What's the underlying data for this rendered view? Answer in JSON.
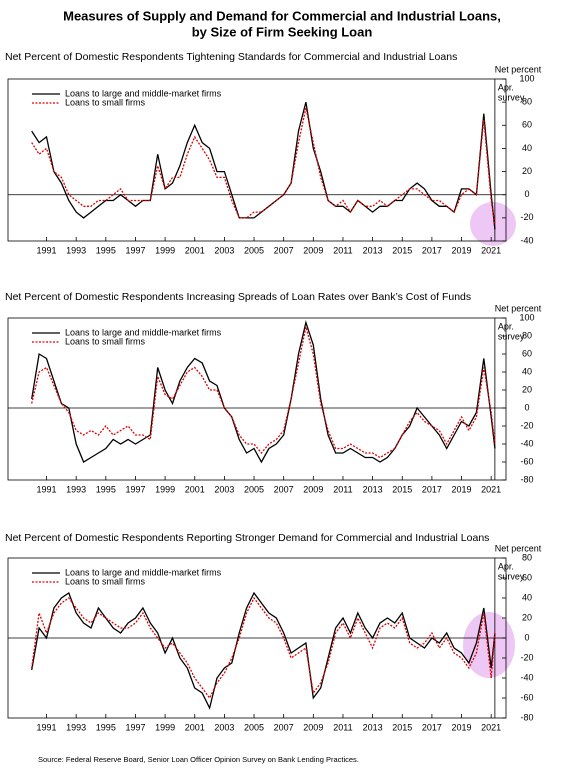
{
  "title": [
    "Measures of Supply and Demand for Commercial and Industrial Loans,",
    "by Size of Firm Seeking Loan"
  ],
  "source": "Source:  Federal Reserve Board, Senior Loan Officer Opinion Survey on Bank Lending Practices.",
  "chart_data": [
    {
      "type": "line",
      "title": "Net Percent of Domestic Respondents Tightening Standards for Commercial and Industrial Loans",
      "y_label": "Net percent",
      "annotation": {
        "x": 2021.25,
        "lines": [
          "Apr.",
          "survey"
        ]
      },
      "zero_line": true,
      "xlim": [
        1988.4,
        2022
      ],
      "xticks": [
        1991,
        1993,
        1995,
        1997,
        1999,
        2001,
        2003,
        2005,
        2007,
        2009,
        2011,
        2013,
        2015,
        2017,
        2019,
        2021
      ],
      "ylim": [
        -40,
        100
      ],
      "yticks": [
        -40,
        -20,
        0,
        20,
        40,
        60,
        80,
        100
      ],
      "x": [
        1990,
        1990.5,
        1991,
        1991.5,
        1992,
        1992.5,
        1993,
        1993.5,
        1994,
        1994.5,
        1995,
        1995.5,
        1996,
        1996.5,
        1997,
        1997.5,
        1998,
        1998.5,
        1999,
        1999.5,
        2000,
        2000.5,
        2001,
        2001.5,
        2002,
        2002.5,
        2003,
        2003.5,
        2004,
        2004.5,
        2005,
        2005.5,
        2006,
        2006.5,
        2007,
        2007.5,
        2008,
        2008.5,
        2009,
        2009.5,
        2010,
        2010.5,
        2011,
        2011.5,
        2012,
        2012.5,
        2013,
        2013.5,
        2014,
        2014.5,
        2015,
        2015.5,
        2016,
        2016.5,
        2017,
        2017.5,
        2018,
        2018.5,
        2019,
        2019.5,
        2020,
        2020.5,
        2021,
        2021.25
      ],
      "series": [
        {
          "name": "Loans to large and middle-market firms",
          "color": "#000000",
          "line_style": "solid",
          "values": [
            55,
            45,
            50,
            20,
            10,
            -5,
            -15,
            -20,
            -15,
            -10,
            -5,
            -5,
            0,
            -5,
            -10,
            -5,
            -5,
            35,
            5,
            10,
            25,
            45,
            60,
            45,
            40,
            20,
            20,
            0,
            -20,
            -20,
            -20,
            -15,
            -10,
            -5,
            0,
            10,
            55,
            80,
            40,
            20,
            -5,
            -10,
            -10,
            -15,
            -5,
            -10,
            -15,
            -10,
            -10,
            -5,
            -5,
            5,
            10,
            5,
            -5,
            -10,
            -10,
            -15,
            5,
            5,
            0,
            70,
            0,
            -30
          ]
        },
        {
          "name": "Loans to small firms",
          "color": "#e00000",
          "line_style": "dotted",
          "values": [
            45,
            35,
            40,
            20,
            15,
            0,
            -5,
            -10,
            -10,
            -5,
            -5,
            0,
            5,
            -5,
            -5,
            -5,
            -5,
            25,
            5,
            15,
            15,
            35,
            50,
            40,
            30,
            15,
            15,
            -5,
            -20,
            -20,
            -15,
            -15,
            -10,
            -5,
            0,
            10,
            45,
            75,
            45,
            15,
            -5,
            -10,
            -5,
            -15,
            -5,
            -10,
            -10,
            -5,
            -10,
            -5,
            0,
            5,
            5,
            0,
            -5,
            -5,
            -10,
            -15,
            0,
            5,
            0,
            65,
            -5,
            -25
          ]
        }
      ]
    },
    {
      "type": "line",
      "title": "Net Percent of Domestic Respondents Increasing Spreads of Loan Rates over Bank’s Cost of Funds",
      "y_label": "Net percent",
      "annotation": {
        "x": 2021.25,
        "lines": [
          "Apr.",
          "survey"
        ]
      },
      "zero_line": true,
      "xlim": [
        1988.4,
        2022
      ],
      "xticks": [
        1991,
        1993,
        1995,
        1997,
        1999,
        2001,
        2003,
        2005,
        2007,
        2009,
        2011,
        2013,
        2015,
        2017,
        2019,
        2021
      ],
      "ylim": [
        -80,
        100
      ],
      "yticks": [
        -80,
        -60,
        -40,
        -20,
        0,
        20,
        40,
        60,
        80,
        100
      ],
      "x": [
        1990,
        1990.5,
        1991,
        1991.5,
        1992,
        1992.5,
        1993,
        1993.5,
        1994,
        1994.5,
        1995,
        1995.5,
        1996,
        1996.5,
        1997,
        1997.5,
        1998,
        1998.5,
        1999,
        1999.5,
        2000,
        2000.5,
        2001,
        2001.5,
        2002,
        2002.5,
        2003,
        2003.5,
        2004,
        2004.5,
        2005,
        2005.5,
        2006,
        2006.5,
        2007,
        2007.5,
        2008,
        2008.5,
        2009,
        2009.5,
        2010,
        2010.5,
        2011,
        2011.5,
        2012,
        2012.5,
        2013,
        2013.5,
        2014,
        2014.5,
        2015,
        2015.5,
        2016,
        2016.5,
        2017,
        2017.5,
        2018,
        2018.5,
        2019,
        2019.5,
        2020,
        2020.5,
        2021,
        2021.25
      ],
      "series": [
        {
          "name": "Loans to large and middle-market firms",
          "color": "#000000",
          "line_style": "solid",
          "values": [
            10,
            60,
            55,
            30,
            5,
            0,
            -40,
            -60,
            -55,
            -50,
            -45,
            -35,
            -40,
            -35,
            -40,
            -35,
            -30,
            45,
            20,
            5,
            30,
            45,
            55,
            50,
            30,
            25,
            0,
            -10,
            -35,
            -50,
            -45,
            -60,
            -45,
            -40,
            -30,
            10,
            60,
            95,
            70,
            10,
            -30,
            -50,
            -50,
            -45,
            -50,
            -55,
            -55,
            -60,
            -55,
            -45,
            -30,
            -20,
            0,
            -10,
            -20,
            -30,
            -45,
            -30,
            -15,
            -20,
            -5,
            55,
            -10,
            -45
          ]
        },
        {
          "name": "Loans to small firms",
          "color": "#e00000",
          "line_style": "dotted",
          "values": [
            5,
            40,
            45,
            25,
            5,
            -5,
            -25,
            -30,
            -25,
            -30,
            -20,
            -30,
            -25,
            -20,
            -30,
            -30,
            -35,
            35,
            15,
            10,
            25,
            40,
            45,
            35,
            20,
            20,
            0,
            -10,
            -30,
            -40,
            -40,
            -50,
            -40,
            -35,
            -25,
            10,
            50,
            90,
            60,
            5,
            -25,
            -45,
            -45,
            -40,
            -45,
            -50,
            -50,
            -55,
            -50,
            -45,
            -30,
            -15,
            -5,
            -15,
            -20,
            -25,
            -40,
            -25,
            -10,
            -25,
            -10,
            45,
            -5,
            -40
          ]
        }
      ]
    },
    {
      "type": "line",
      "title": "Net Percent of Domestic Respondents Reporting Stronger Demand for Commercial and Industrial Loans",
      "y_label": "Net percent",
      "annotation": {
        "x": 2021.25,
        "lines": [
          "Apr.",
          "survey"
        ]
      },
      "zero_line": true,
      "xlim": [
        1988.4,
        2022
      ],
      "xticks": [
        1991,
        1993,
        1995,
        1997,
        1999,
        2001,
        2003,
        2005,
        2007,
        2009,
        2011,
        2013,
        2015,
        2017,
        2019,
        2021
      ],
      "ylim": [
        -80,
        80
      ],
      "yticks": [
        -80,
        -60,
        -40,
        -20,
        0,
        20,
        40,
        60,
        80
      ],
      "x": [
        1990,
        1990.5,
        1991,
        1991.5,
        1992,
        1992.5,
        1993,
        1993.5,
        1994,
        1994.5,
        1995,
        1995.5,
        1996,
        1996.5,
        1997,
        1997.5,
        1998,
        1998.5,
        1999,
        1999.5,
        2000,
        2000.5,
        2001,
        2001.5,
        2002,
        2002.5,
        2003,
        2003.5,
        2004,
        2004.5,
        2005,
        2005.5,
        2006,
        2006.5,
        2007,
        2007.5,
        2008,
        2008.5,
        2009,
        2009.5,
        2010,
        2010.5,
        2011,
        2011.5,
        2012,
        2012.5,
        2013,
        2013.5,
        2014,
        2014.5,
        2015,
        2015.5,
        2016,
        2016.5,
        2017,
        2017.5,
        2018,
        2018.5,
        2019,
        2019.5,
        2020,
        2020.5,
        2021,
        2021.25
      ],
      "series": [
        {
          "name": "Loans to large and middle-market firms",
          "color": "#000000",
          "line_style": "solid",
          "values": [
            -32,
            10,
            0,
            30,
            40,
            45,
            25,
            15,
            10,
            30,
            20,
            10,
            5,
            15,
            20,
            30,
            15,
            5,
            -15,
            0,
            -20,
            -30,
            -50,
            -55,
            -70,
            -40,
            -30,
            -25,
            5,
            30,
            45,
            35,
            25,
            20,
            5,
            -15,
            -10,
            -5,
            -60,
            -50,
            -20,
            10,
            20,
            5,
            25,
            10,
            0,
            15,
            20,
            15,
            25,
            0,
            -5,
            -10,
            0,
            -5,
            5,
            -10,
            -15,
            -25,
            -5,
            30,
            -30,
            5
          ]
        },
        {
          "name": "Loans to small firms",
          "color": "#e00000",
          "line_style": "dotted",
          "values": [
            -30,
            25,
            5,
            25,
            35,
            40,
            30,
            20,
            15,
            25,
            20,
            15,
            10,
            10,
            15,
            25,
            10,
            0,
            -10,
            -5,
            -15,
            -25,
            -40,
            -50,
            -60,
            -45,
            -35,
            -20,
            0,
            25,
            40,
            30,
            20,
            15,
            0,
            -20,
            -15,
            -10,
            -55,
            -45,
            -25,
            5,
            15,
            0,
            20,
            5,
            -10,
            10,
            15,
            10,
            20,
            -5,
            -10,
            -5,
            5,
            -10,
            0,
            -15,
            -20,
            -30,
            -15,
            25,
            -40,
            5
          ]
        }
      ]
    }
  ]
}
